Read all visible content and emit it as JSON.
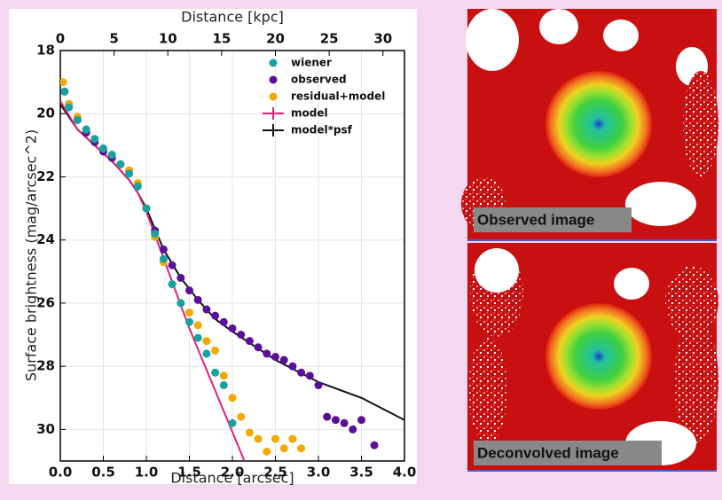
{
  "chart_data": {
    "type": "scatter",
    "x_label": "Distance [arcsec]",
    "x2_label": "Distance [kpc]",
    "y_label": "Surface brightness (mag/arcsec^2)",
    "xlim": [
      0,
      4
    ],
    "xticks": [
      {
        "value": 0,
        "label": "0.0"
      },
      {
        "value": 0.5,
        "label": "0.5"
      },
      {
        "value": 1,
        "label": "1.0"
      },
      {
        "value": 1.5,
        "label": "1.5"
      },
      {
        "value": 2,
        "label": "2.0"
      },
      {
        "value": 2.5,
        "label": "2.5"
      },
      {
        "value": 3,
        "label": "3.0"
      },
      {
        "value": 3.5,
        "label": "3.5"
      },
      {
        "value": 4,
        "label": "4.0"
      }
    ],
    "x2lim": [
      0,
      32
    ],
    "x2ticks": [
      0,
      5,
      10,
      15,
      20,
      25,
      30
    ],
    "ylim": [
      31,
      18
    ],
    "yticks": [
      18,
      20,
      22,
      24,
      26,
      28,
      30
    ],
    "grid": true,
    "legend": "upper right",
    "series": [
      {
        "name": "wiener",
        "color": "#17a2a2",
        "style": "marker",
        "x": [
          0.05,
          0.1,
          0.2,
          0.3,
          0.4,
          0.5,
          0.6,
          0.7,
          0.8,
          0.9,
          1.0,
          1.1,
          1.2,
          1.3,
          1.4,
          1.5,
          1.6,
          1.7,
          1.8,
          1.9,
          2.0
        ],
        "values": [
          19.3,
          19.8,
          20.2,
          20.5,
          20.8,
          21.1,
          21.3,
          21.6,
          21.9,
          22.3,
          23.0,
          23.8,
          24.6,
          25.4,
          26.0,
          26.6,
          27.1,
          27.6,
          28.2,
          28.6,
          29.8
        ]
      },
      {
        "name": "observed",
        "color": "#5a0f9a",
        "style": "marker",
        "x": [
          0.05,
          0.1,
          0.2,
          0.3,
          0.4,
          0.5,
          0.6,
          0.7,
          0.8,
          0.9,
          1.0,
          1.1,
          1.2,
          1.3,
          1.4,
          1.5,
          1.6,
          1.7,
          1.8,
          1.9,
          2.0,
          2.1,
          2.2,
          2.3,
          2.4,
          2.5,
          2.6,
          2.7,
          2.8,
          2.9,
          3.0,
          3.1,
          3.2,
          3.3,
          3.4,
          3.5,
          3.65
        ],
        "values": [
          19.3,
          19.7,
          20.2,
          20.6,
          20.9,
          21.2,
          21.4,
          21.6,
          21.8,
          22.3,
          23.0,
          23.7,
          24.3,
          24.8,
          25.2,
          25.6,
          25.9,
          26.2,
          26.4,
          26.6,
          26.8,
          27.0,
          27.2,
          27.4,
          27.6,
          27.7,
          27.8,
          28.0,
          28.2,
          28.3,
          28.6,
          29.6,
          29.7,
          29.8,
          30.0,
          29.7,
          30.5
        ]
      },
      {
        "name": "residual+model",
        "color": "#f5a800",
        "style": "marker",
        "x": [
          0.03,
          0.1,
          0.2,
          0.3,
          0.4,
          0.5,
          0.6,
          0.7,
          0.8,
          0.9,
          1.0,
          1.1,
          1.2,
          1.3,
          1.4,
          1.5,
          1.6,
          1.7,
          1.8,
          1.9,
          2.0,
          2.1,
          2.2,
          2.3,
          2.4,
          2.5,
          2.6,
          2.7,
          2.8
        ],
        "values": [
          19.0,
          19.7,
          20.1,
          20.5,
          20.8,
          21.1,
          21.3,
          21.6,
          21.8,
          22.2,
          23.0,
          23.9,
          24.7,
          25.4,
          26.0,
          26.3,
          26.7,
          27.2,
          27.5,
          28.3,
          29.0,
          29.6,
          30.1,
          30.3,
          30.7,
          30.3,
          30.6,
          30.3,
          30.6
        ]
      },
      {
        "name": "model",
        "color": "#e0207a",
        "style": "line",
        "x": [
          0,
          0.2,
          0.4,
          0.6,
          0.8,
          0.9,
          1.0,
          1.5,
          2.14
        ],
        "values": [
          19.6,
          20.5,
          21.0,
          21.5,
          22.1,
          22.5,
          23.1,
          26.8,
          31
        ]
      },
      {
        "name": "model*psf",
        "color": "#111111",
        "style": "line",
        "x": [
          0,
          0.2,
          0.4,
          0.6,
          0.8,
          0.9,
          1.0,
          1.2,
          1.4,
          1.6,
          1.8,
          2.0,
          2.5,
          3.0,
          3.5,
          4.0
        ],
        "values": [
          19.7,
          20.5,
          21.0,
          21.5,
          22.1,
          22.5,
          23.0,
          24.3,
          25.2,
          25.9,
          26.5,
          26.9,
          27.8,
          28.5,
          29.0,
          29.7
        ]
      }
    ]
  },
  "images": [
    {
      "label": "Observed image"
    },
    {
      "label": "Deconvolved image"
    }
  ]
}
